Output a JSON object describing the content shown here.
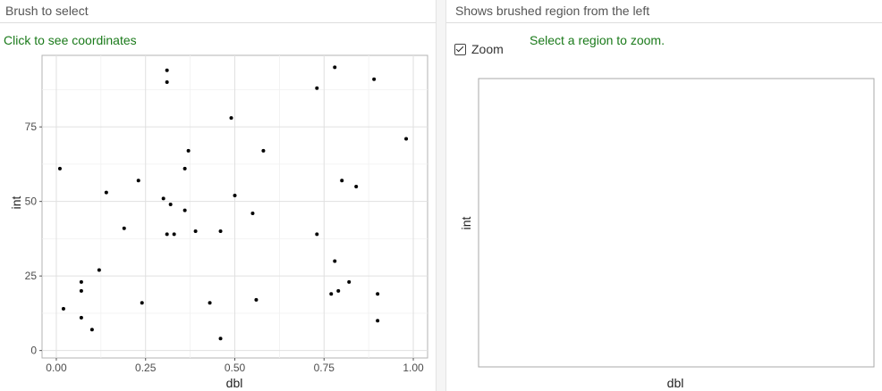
{
  "left_panel": {
    "header": "Brush to select",
    "hint": "Click to see coordinates"
  },
  "right_panel": {
    "header": "Shows brushed region from the left",
    "zoom_label": "Zoom",
    "zoom_checked": true,
    "hint": "Select a region to zoom.",
    "xlabel": "dbl",
    "ylabel": "int"
  },
  "chart_data": {
    "type": "scatter",
    "xlabel": "dbl",
    "ylabel": "int",
    "xlim": [
      -0.04,
      1.04
    ],
    "ylim": [
      -2.5,
      99
    ],
    "xticks": [
      0.0,
      0.25,
      0.5,
      0.75,
      1.0
    ],
    "xtick_labels": [
      "0.00",
      "0.25",
      "0.50",
      "0.75",
      "1.00"
    ],
    "yticks": [
      0,
      25,
      50,
      75
    ],
    "ytick_labels": [
      "0",
      "25",
      "50",
      "75"
    ],
    "grid": true,
    "points": [
      {
        "x": 0.01,
        "y": 61
      },
      {
        "x": 0.02,
        "y": 14
      },
      {
        "x": 0.07,
        "y": 11
      },
      {
        "x": 0.07,
        "y": 20
      },
      {
        "x": 0.07,
        "y": 23
      },
      {
        "x": 0.1,
        "y": 7
      },
      {
        "x": 0.12,
        "y": 27
      },
      {
        "x": 0.14,
        "y": 53
      },
      {
        "x": 0.19,
        "y": 41
      },
      {
        "x": 0.23,
        "y": 57
      },
      {
        "x": 0.24,
        "y": 16
      },
      {
        "x": 0.3,
        "y": 51
      },
      {
        "x": 0.31,
        "y": 39
      },
      {
        "x": 0.31,
        "y": 90
      },
      {
        "x": 0.31,
        "y": 94
      },
      {
        "x": 0.32,
        "y": 49
      },
      {
        "x": 0.33,
        "y": 39
      },
      {
        "x": 0.36,
        "y": 47
      },
      {
        "x": 0.36,
        "y": 61
      },
      {
        "x": 0.37,
        "y": 67
      },
      {
        "x": 0.39,
        "y": 40
      },
      {
        "x": 0.43,
        "y": 16
      },
      {
        "x": 0.46,
        "y": 40
      },
      {
        "x": 0.46,
        "y": 4
      },
      {
        "x": 0.49,
        "y": 78
      },
      {
        "x": 0.5,
        "y": 52
      },
      {
        "x": 0.55,
        "y": 46
      },
      {
        "x": 0.56,
        "y": 17
      },
      {
        "x": 0.58,
        "y": 67
      },
      {
        "x": 0.73,
        "y": 88
      },
      {
        "x": 0.73,
        "y": 39
      },
      {
        "x": 0.77,
        "y": 19
      },
      {
        "x": 0.78,
        "y": 30
      },
      {
        "x": 0.78,
        "y": 95
      },
      {
        "x": 0.79,
        "y": 20
      },
      {
        "x": 0.8,
        "y": 57
      },
      {
        "x": 0.82,
        "y": 23
      },
      {
        "x": 0.84,
        "y": 55
      },
      {
        "x": 0.89,
        "y": 91
      },
      {
        "x": 0.9,
        "y": 19
      },
      {
        "x": 0.9,
        "y": 10
      },
      {
        "x": 0.98,
        "y": 71
      }
    ]
  }
}
